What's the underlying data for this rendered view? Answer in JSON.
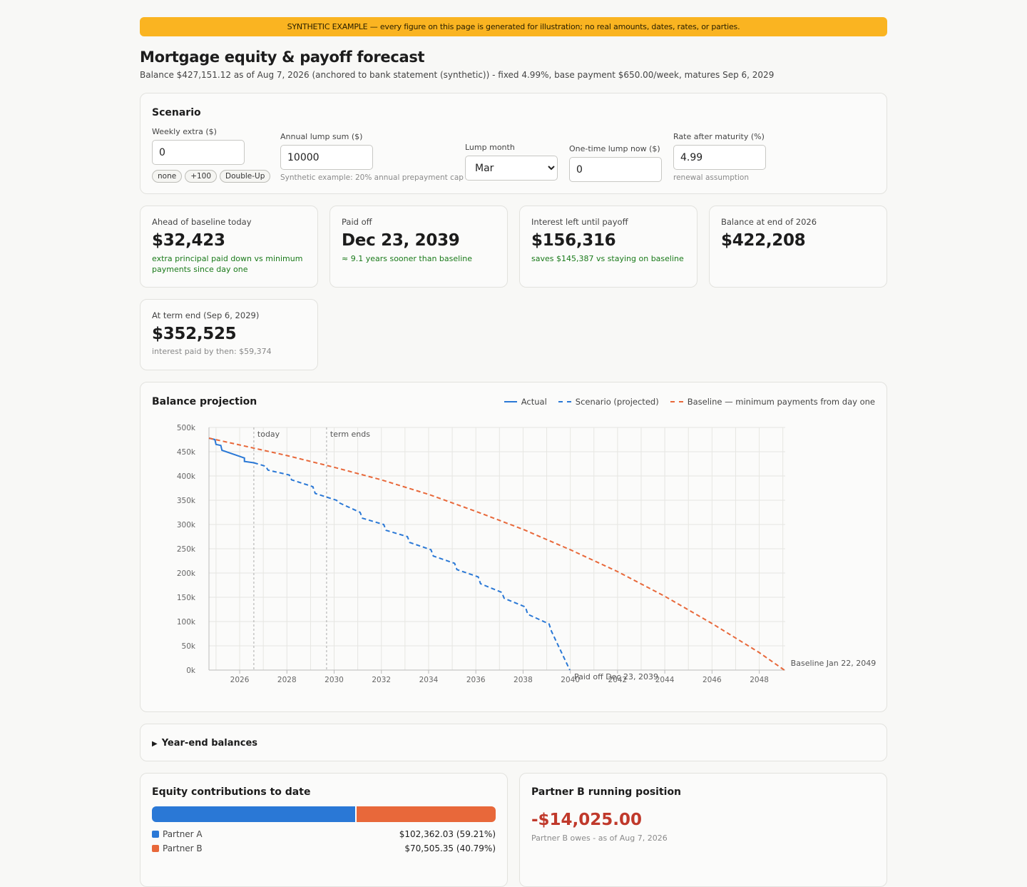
{
  "banner": "SYNTHETIC EXAMPLE — every figure on this page is generated for illustration; no real amounts, dates, rates, or parties.",
  "title": "Mortgage equity & payoff forecast",
  "subtitle": "Balance $427,151.12 as of Aug 7, 2026 (anchored to bank statement (synthetic)) - fixed 4.99%, base payment $650.00/week, matures Sep 6, 2029",
  "scenario": {
    "title": "Scenario",
    "weekly_extra": {
      "label": "Weekly extra ($)",
      "value": "0",
      "presets": [
        "none",
        "+100",
        "Double-Up"
      ]
    },
    "annual_lump": {
      "label": "Annual lump sum ($)",
      "value": "10000",
      "hint": "Synthetic example: 20% annual prepayment cap"
    },
    "lump_month": {
      "label": "Lump month",
      "value": "Mar"
    },
    "one_time": {
      "label": "One-time lump now ($)",
      "value": "0"
    },
    "rate_after": {
      "label": "Rate after maturity (%)",
      "value": "4.99",
      "hint": "renewal assumption"
    }
  },
  "kpis": [
    {
      "label": "Ahead of baseline today",
      "value": "$32,423",
      "note": "extra principal paid down vs minimum payments since day one"
    },
    {
      "label": "Paid off",
      "value": "Dec 23, 2039",
      "note": "≈ 9.1 years sooner than baseline"
    },
    {
      "label": "Interest left until payoff",
      "value": "$156,316",
      "note": "saves $145,387 vs staying on baseline"
    },
    {
      "label": "Balance at end of 2026",
      "value": "$422,208",
      "note": ""
    },
    {
      "label": "At term end (Sep 6, 2029)",
      "value": "$352,525",
      "note": "interest paid by then: $59,374"
    }
  ],
  "chart_card": {
    "title": "Balance projection",
    "legend": [
      "Actual",
      "Scenario (projected)",
      "Baseline — minimum payments from day one"
    ],
    "colors": {
      "actual": "#2a78d6",
      "scenario": "#2a78d6",
      "baseline": "#e8683a",
      "grid": "#e6e6e2"
    }
  },
  "chart_data": {
    "type": "line",
    "xlim": [
      2024.7,
      2049.1
    ],
    "ylim": [
      0,
      500000
    ],
    "x_ticks": [
      2026,
      2028,
      2030,
      2032,
      2034,
      2036,
      2038,
      2040,
      2042,
      2044,
      2046,
      2048
    ],
    "x_tick_labels": [
      "2026",
      "2028",
      "2030",
      "2032",
      "2034",
      "2036",
      "2038",
      "2040",
      "2042",
      "2044",
      "2046",
      "2048"
    ],
    "y_ticks": [
      0,
      50000,
      100000,
      150000,
      200000,
      250000,
      300000,
      350000,
      400000,
      450000,
      500000
    ],
    "y_tick_labels": [
      "0k",
      "50k",
      "100k",
      "150k",
      "200k",
      "250k",
      "300k",
      "350k",
      "400k",
      "450k",
      "500k"
    ],
    "grid": true,
    "legend_position": "top-right",
    "series": [
      {
        "name": "Actual",
        "style": "solid",
        "points": [
          [
            2024.7,
            478000
          ],
          [
            2024.95,
            475000
          ],
          [
            2025.0,
            465000
          ],
          [
            2025.2,
            463000
          ],
          [
            2025.25,
            453000
          ],
          [
            2026.2,
            437000
          ],
          [
            2026.2,
            430000
          ],
          [
            2026.6,
            427151
          ]
        ]
      },
      {
        "name": "Scenario (projected)",
        "style": "dashed",
        "points": [
          [
            2026.6,
            427151
          ],
          [
            2027.1,
            420000
          ],
          [
            2027.2,
            412000
          ],
          [
            2028.1,
            402000
          ],
          [
            2028.2,
            392000
          ],
          [
            2029.1,
            378000
          ],
          [
            2029.2,
            364000
          ],
          [
            2030.1,
            350000
          ],
          [
            2030.2,
            345000
          ],
          [
            2031.1,
            325000
          ],
          [
            2031.2,
            313000
          ],
          [
            2032.1,
            300000
          ],
          [
            2032.2,
            288000
          ],
          [
            2033.1,
            275000
          ],
          [
            2033.2,
            263000
          ],
          [
            2034.1,
            248000
          ],
          [
            2034.2,
            235000
          ],
          [
            2035.1,
            220000
          ],
          [
            2035.2,
            207000
          ],
          [
            2036.1,
            192000
          ],
          [
            2036.2,
            178000
          ],
          [
            2037.1,
            160000
          ],
          [
            2037.2,
            148000
          ],
          [
            2038.1,
            130000
          ],
          [
            2038.2,
            115000
          ],
          [
            2039.1,
            95000
          ],
          [
            2039.2,
            80000
          ],
          [
            2039.98,
            0
          ]
        ]
      },
      {
        "name": "Baseline — minimum payments from day one",
        "style": "dashed",
        "points": [
          [
            2024.7,
            478000
          ],
          [
            2026,
            464000
          ],
          [
            2028,
            442000
          ],
          [
            2030,
            418000
          ],
          [
            2032,
            392000
          ],
          [
            2034,
            362000
          ],
          [
            2036,
            327000
          ],
          [
            2038,
            290000
          ],
          [
            2040,
            248000
          ],
          [
            2042,
            203000
          ],
          [
            2044,
            152000
          ],
          [
            2046,
            96000
          ],
          [
            2048,
            36000
          ],
          [
            2049.06,
            0
          ]
        ]
      }
    ],
    "annotations": [
      {
        "x": 2026.6,
        "text": "today"
      },
      {
        "x": 2029.68,
        "text": "term ends"
      }
    ],
    "end_labels": [
      {
        "x": 2039.98,
        "y": 0,
        "text": "Paid off Dec 23, 2039"
      },
      {
        "x": 2049.06,
        "y": 0,
        "text": "Baseline Jan 22, 2049"
      }
    ]
  },
  "year_end": {
    "label": "Year-end balances"
  },
  "equity": {
    "title": "Equity contributions to date",
    "partners": [
      {
        "name": "Partner A",
        "amount": "$102,362.03 (59.21%)",
        "share": 0.5921,
        "color": "#2a78d6"
      },
      {
        "name": "Partner B",
        "amount": "$70,505.35 (40.79%)",
        "share": 0.4079,
        "color": "#e8683a"
      }
    ]
  },
  "position": {
    "title": "Partner B running position",
    "value": "-$14,025.00",
    "note": "Partner B owes - as of Aug 7, 2026",
    "value_color": "#c0392b"
  }
}
